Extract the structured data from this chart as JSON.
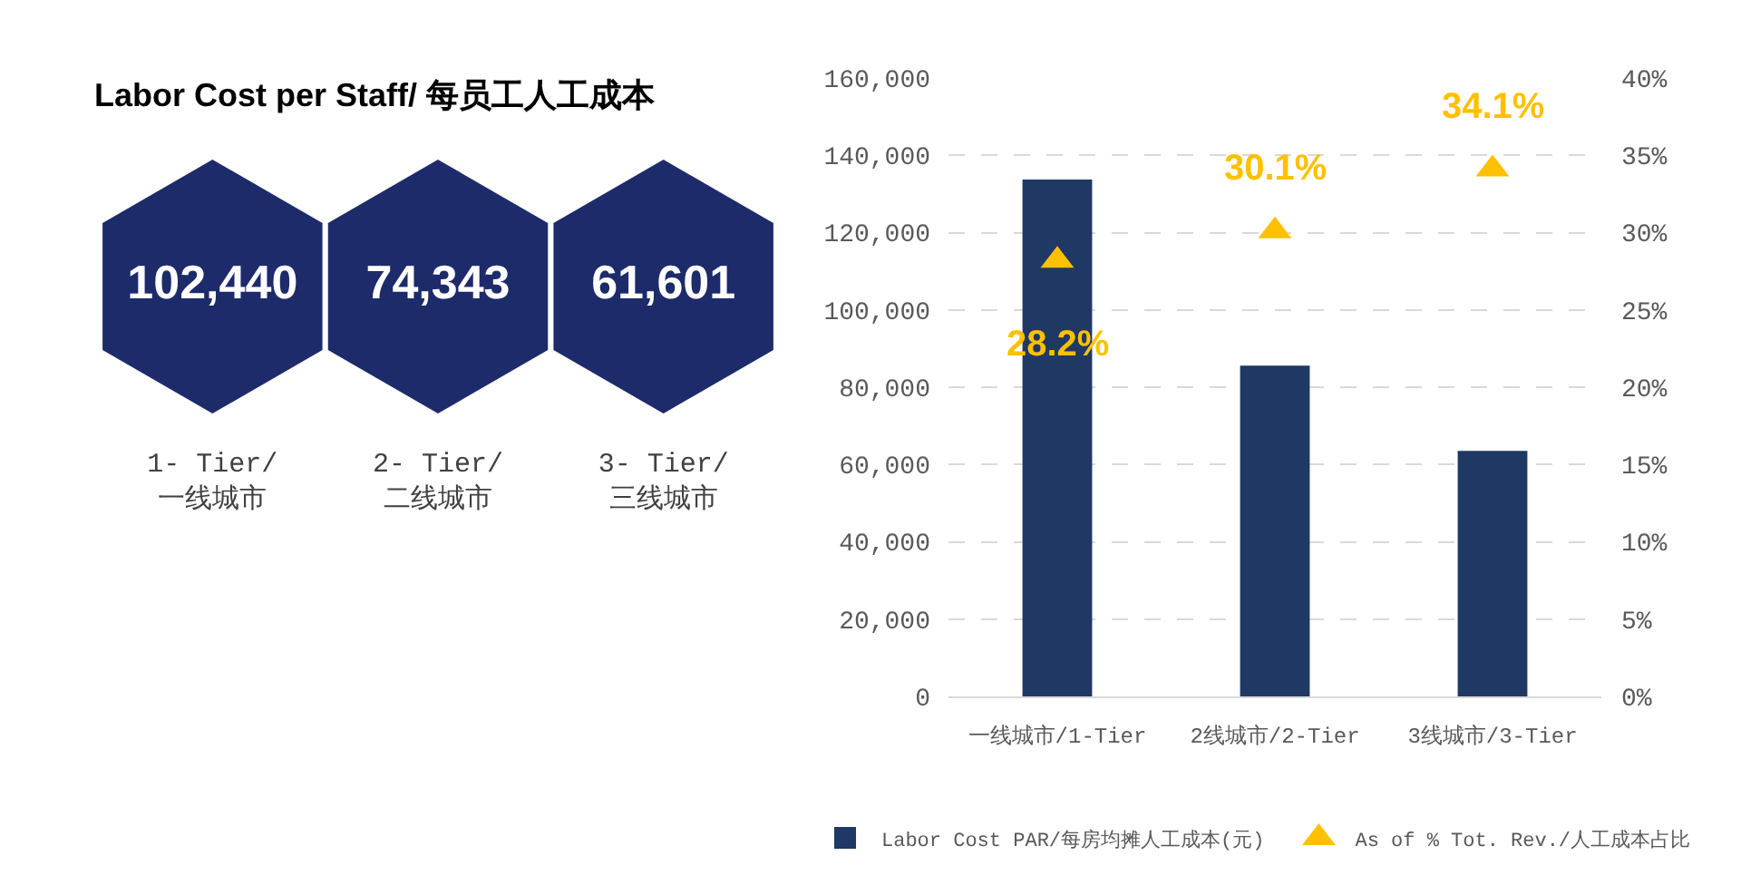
{
  "chart_data": [
    {
      "type": "other",
      "title": "Labor Cost per Staff/ 每员工人工成本",
      "categories": [
        "1- Tier/\n一线城市",
        "2- Tier/\n二线城市",
        "3- Tier/\n三线城市"
      ],
      "value_labels": [
        "102,440",
        "74,343",
        "61,601"
      ],
      "color": "#1d2b6b"
    },
    {
      "type": "bar",
      "categories": [
        "一线城市/1-Tier",
        "2线城市/2-Tier",
        "3线城市/3-Tier"
      ],
      "series": [
        {
          "name": "Labor Cost PAR/每房均摊人工成本(元)",
          "type": "bar",
          "color": "#1f3864",
          "values": [
            133700,
            85600,
            63500
          ]
        },
        {
          "name": "As of % Tot. Rev./人工成本占比",
          "type": "scatter",
          "axis": "y2",
          "color": "#ffc000",
          "values": [
            28.2,
            30.1,
            34.1
          ],
          "value_labels": [
            "28.2%",
            "30.1%",
            "34.1%"
          ]
        }
      ],
      "ylim": [
        0,
        160000
      ],
      "yticks": [
        0,
        {
          "value": 20000,
          "label": "20,000"
        },
        {
          "value": 40000,
          "label": "40,000"
        },
        {
          "value": 60000,
          "label": "60,000"
        },
        {
          "value": 80000,
          "label": "80,000"
        },
        {
          "value": 100000,
          "label": "100,000"
        },
        {
          "value": 120000,
          "label": "120,000"
        },
        {
          "value": 140000,
          "label": "140,000"
        },
        {
          "value": 160000,
          "label": "160,000"
        }
      ],
      "y2lim": [
        0,
        40
      ],
      "y2ticks": [
        {
          "value": 0,
          "label": "0%"
        },
        {
          "value": 5,
          "label": "5%"
        },
        {
          "value": 10,
          "label": "10%"
        },
        {
          "value": 15,
          "label": "15%"
        },
        {
          "value": 20,
          "label": "20%"
        },
        {
          "value": 25,
          "label": "25%"
        },
        {
          "value": 30,
          "label": "30%"
        },
        {
          "value": 35,
          "label": "35%"
        },
        {
          "value": 40,
          "label": "40%"
        }
      ],
      "grid": "y",
      "legend": "bottom",
      "marker": "triangle"
    }
  ]
}
